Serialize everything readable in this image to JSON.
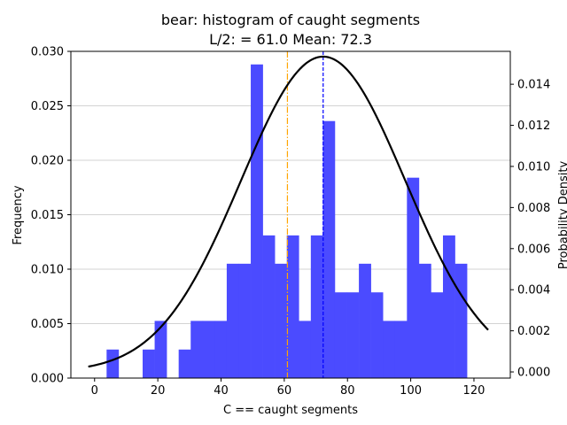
{
  "chart_data": {
    "type": "bar",
    "title_line1": "bear: histogram of caught segments",
    "title_line2": "L/2: = 61.0 Mean: 72.3",
    "xlabel": "C == caught segments",
    "ylabel": "Frequency",
    "y2label": "Probability Density",
    "xlim": [
      -7.5,
      131.5
    ],
    "ylim": [
      0,
      0.03
    ],
    "y2lim": [
      -0.0003,
      0.0156
    ],
    "x_ticks": [
      0,
      20,
      40,
      60,
      80,
      100,
      120
    ],
    "y_ticks": [
      0.0,
      0.005,
      0.01,
      0.015,
      0.02,
      0.025,
      0.03
    ],
    "y2_ticks": [
      0.0,
      0.002,
      0.004,
      0.006,
      0.008,
      0.01,
      0.012,
      0.014
    ],
    "grid": "horizontal",
    "bin_width": 3.8,
    "bar_color": "#4b4bff",
    "bins": [
      {
        "left": 3.8,
        "value": 0.00262
      },
      {
        "left": 15.2,
        "value": 0.00262
      },
      {
        "left": 19.0,
        "value": 0.00525
      },
      {
        "left": 26.6,
        "value": 0.00262
      },
      {
        "left": 30.4,
        "value": 0.00525
      },
      {
        "left": 34.2,
        "value": 0.00525
      },
      {
        "left": 38.0,
        "value": 0.00525
      },
      {
        "left": 41.8,
        "value": 0.0105
      },
      {
        "left": 45.6,
        "value": 0.0105
      },
      {
        "left": 49.4,
        "value": 0.0288
      },
      {
        "left": 53.2,
        "value": 0.0131
      },
      {
        "left": 57.0,
        "value": 0.0105
      },
      {
        "left": 60.8,
        "value": 0.0131
      },
      {
        "left": 64.6,
        "value": 0.00525
      },
      {
        "left": 68.4,
        "value": 0.0131
      },
      {
        "left": 72.2,
        "value": 0.0236
      },
      {
        "left": 76.0,
        "value": 0.00787
      },
      {
        "left": 79.8,
        "value": 0.00787
      },
      {
        "left": 83.6,
        "value": 0.0105
      },
      {
        "left": 87.4,
        "value": 0.00787
      },
      {
        "left": 91.2,
        "value": 0.00525
      },
      {
        "left": 95.0,
        "value": 0.00525
      },
      {
        "left": 98.8,
        "value": 0.0184
      },
      {
        "left": 102.6,
        "value": 0.0105
      },
      {
        "left": 106.4,
        "value": 0.00787
      },
      {
        "left": 110.2,
        "value": 0.0131
      },
      {
        "left": 114.0,
        "value": 0.0105
      }
    ],
    "normal_curve": {
      "mean": 72.3,
      "std": 26.0,
      "x_range": [
        -2,
        124.5
      ],
      "color": "#000000"
    },
    "lines": [
      {
        "name": "L/2",
        "x": 61.0,
        "color": "#ffa500",
        "style": "dashdot"
      },
      {
        "name": "Mean",
        "x": 72.3,
        "color": "#0000ff",
        "style": "dashed"
      }
    ]
  }
}
